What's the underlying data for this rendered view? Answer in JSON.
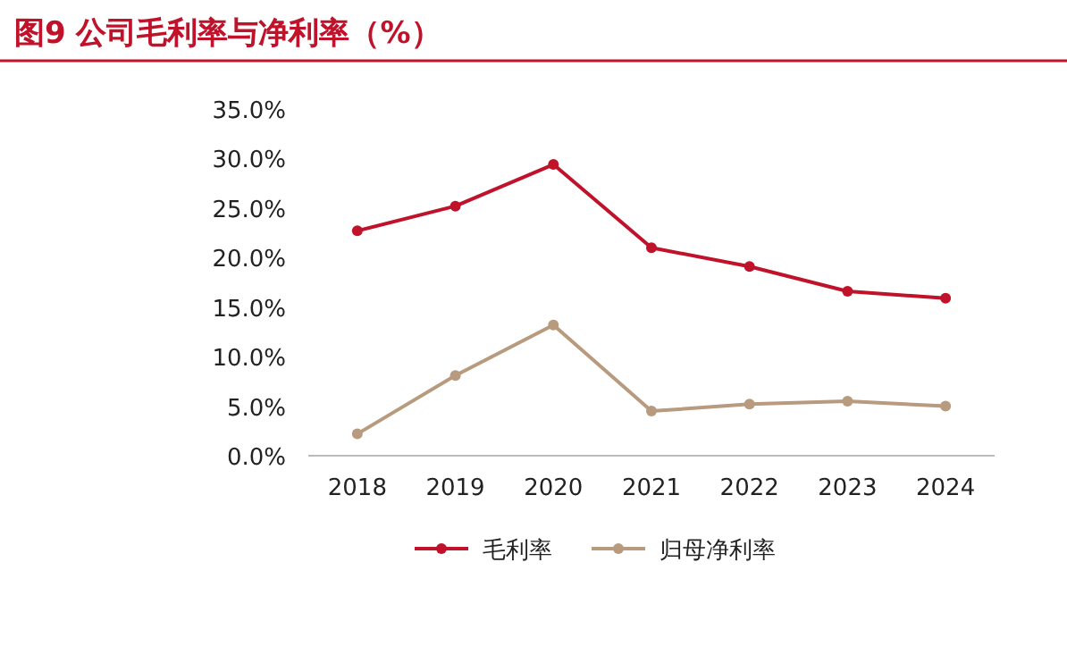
{
  "chart_data": {
    "type": "line",
    "title": "图9 公司毛利率与净利率（%）",
    "categories": [
      "2018",
      "2019",
      "2020",
      "2021",
      "2022",
      "2023",
      "2024"
    ],
    "series": [
      {
        "name": "毛利率",
        "color": "#c0122a",
        "values": [
          22.7,
          25.2,
          29.4,
          21.0,
          19.1,
          16.6,
          15.9
        ]
      },
      {
        "name": "归母净利率",
        "color": "#b89a7e",
        "values": [
          2.2,
          8.1,
          13.2,
          4.5,
          5.2,
          5.5,
          5.0
        ]
      }
    ],
    "ylim": [
      0,
      35
    ],
    "yticks": [
      {
        "value": 0,
        "label": "0.0%"
      },
      {
        "value": 5,
        "label": "5.0%"
      },
      {
        "value": 10,
        "label": "10.0%"
      },
      {
        "value": 15,
        "label": "15.0%"
      },
      {
        "value": 20,
        "label": "20.0%"
      },
      {
        "value": 25,
        "label": "25.0%"
      },
      {
        "value": 30,
        "label": "30.0%"
      },
      {
        "value": 35,
        "label": "35.0%"
      }
    ],
    "legend": "bottom",
    "marker": "circle",
    "line_style": "solid",
    "grid": false
  }
}
